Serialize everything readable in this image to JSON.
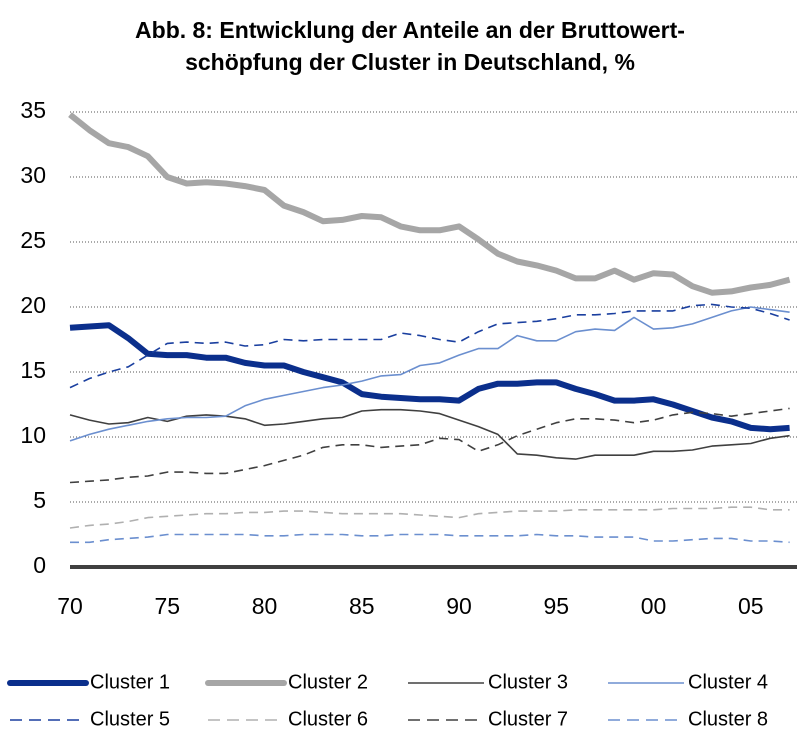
{
  "chart_data": {
    "type": "line",
    "title": [
      "Abb. 8: Entwicklung der Anteile an der Bruttowert-",
      "schöpfung der Cluster in Deutschland, %"
    ],
    "categories": [
      "70",
      null,
      null,
      null,
      null,
      "75",
      null,
      null,
      null,
      null,
      "80",
      null,
      null,
      null,
      null,
      "85",
      null,
      null,
      null,
      null,
      "90",
      null,
      null,
      null,
      null,
      "95",
      null,
      null,
      null,
      null,
      "00",
      null,
      null,
      null,
      null,
      "05",
      null,
      null
    ],
    "ylim": [
      0,
      35
    ],
    "yticks": [
      0,
      5,
      10,
      15,
      20,
      25,
      30,
      35
    ],
    "grid": true,
    "legend": "bottom",
    "series": [
      {
        "name": "Cluster 1",
        "color": "#0b2f8c",
        "line_width": 6,
        "dashed": false,
        "values": [
          18.4,
          18.5,
          18.6,
          17.6,
          16.4,
          16.3,
          16.3,
          16.1,
          16.1,
          15.7,
          15.5,
          15.5,
          15.0,
          14.6,
          14.2,
          13.3,
          13.1,
          13.0,
          12.9,
          12.9,
          12.8,
          13.7,
          14.1,
          14.1,
          14.2,
          14.2,
          13.7,
          13.3,
          12.8,
          12.8,
          12.9,
          12.5,
          12.0,
          11.5,
          11.2,
          10.7,
          10.6,
          10.7
        ]
      },
      {
        "name": "Cluster 2",
        "color": "#a6a6a6",
        "line_width": 6,
        "dashed": false,
        "values": [
          34.8,
          33.6,
          32.6,
          32.3,
          31.6,
          30.0,
          29.5,
          29.6,
          29.5,
          29.3,
          29.0,
          27.8,
          27.3,
          26.6,
          26.7,
          27.0,
          26.9,
          26.2,
          25.9,
          25.9,
          26.2,
          25.2,
          24.1,
          23.5,
          23.2,
          22.8,
          22.2,
          22.2,
          22.8,
          22.1,
          22.6,
          22.5,
          21.6,
          21.1,
          21.2,
          21.5,
          21.7,
          22.1
        ]
      },
      {
        "name": "Cluster 3",
        "color": "#404040",
        "line_width": 1.6,
        "dashed": false,
        "values": [
          11.7,
          11.3,
          11.0,
          11.1,
          11.5,
          11.2,
          11.6,
          11.7,
          11.6,
          11.4,
          10.9,
          11.0,
          11.2,
          11.4,
          11.5,
          12.0,
          12.1,
          12.1,
          12.0,
          11.8,
          11.3,
          10.8,
          10.2,
          8.7,
          8.6,
          8.4,
          8.3,
          8.6,
          8.6,
          8.6,
          8.9,
          8.9,
          9.0,
          9.3,
          9.4,
          9.5,
          9.9,
          10.1
        ]
      },
      {
        "name": "Cluster 4",
        "color": "#6b8fcf",
        "line_width": 1.6,
        "dashed": false,
        "values": [
          9.7,
          10.2,
          10.6,
          10.9,
          11.2,
          11.4,
          11.5,
          11.5,
          11.6,
          12.4,
          12.9,
          13.2,
          13.5,
          13.8,
          14.0,
          14.3,
          14.7,
          14.8,
          15.5,
          15.7,
          16.3,
          16.8,
          16.8,
          17.8,
          17.4,
          17.4,
          18.1,
          18.3,
          18.2,
          19.2,
          18.3,
          18.4,
          18.7,
          19.2,
          19.7,
          20.0,
          19.8,
          19.6
        ]
      },
      {
        "name": "Cluster 5",
        "color": "#1a3f9f",
        "line_width": 1.6,
        "dashed": true,
        "values": [
          13.8,
          14.5,
          15.0,
          15.4,
          16.3,
          17.2,
          17.3,
          17.2,
          17.3,
          17.0,
          17.1,
          17.5,
          17.4,
          17.5,
          17.5,
          17.5,
          17.5,
          18.0,
          17.8,
          17.5,
          17.3,
          18.1,
          18.7,
          18.8,
          18.9,
          19.1,
          19.4,
          19.4,
          19.5,
          19.7,
          19.7,
          19.7,
          20.1,
          20.2,
          20.0,
          19.9,
          19.5,
          19.0
        ]
      },
      {
        "name": "Cluster 6",
        "color": "#b0b0b0",
        "line_width": 1.6,
        "dashed": true,
        "values": [
          3.0,
          3.2,
          3.3,
          3.5,
          3.8,
          3.9,
          4.0,
          4.1,
          4.1,
          4.2,
          4.2,
          4.3,
          4.3,
          4.2,
          4.1,
          4.1,
          4.1,
          4.1,
          4.0,
          3.9,
          3.8,
          4.1,
          4.2,
          4.3,
          4.3,
          4.3,
          4.4,
          4.4,
          4.4,
          4.4,
          4.4,
          4.5,
          4.5,
          4.5,
          4.6,
          4.6,
          4.4,
          4.4
        ]
      },
      {
        "name": "Cluster 7",
        "color": "#404040",
        "line_width": 1.6,
        "dashed": true,
        "values": [
          6.5,
          6.6,
          6.7,
          6.9,
          7.0,
          7.3,
          7.3,
          7.2,
          7.2,
          7.5,
          7.8,
          8.2,
          8.6,
          9.2,
          9.4,
          9.4,
          9.2,
          9.3,
          9.4,
          9.9,
          9.8,
          8.9,
          9.4,
          10.1,
          10.6,
          11.1,
          11.4,
          11.4,
          11.3,
          11.1,
          11.3,
          11.7,
          11.9,
          11.8,
          11.6,
          11.8,
          12.0,
          12.2
        ]
      },
      {
        "name": "Cluster 8",
        "color": "#6b8fcf",
        "line_width": 1.6,
        "dashed": true,
        "values": [
          1.9,
          1.9,
          2.1,
          2.2,
          2.3,
          2.5,
          2.5,
          2.5,
          2.5,
          2.5,
          2.4,
          2.4,
          2.5,
          2.5,
          2.5,
          2.4,
          2.4,
          2.5,
          2.5,
          2.5,
          2.4,
          2.4,
          2.4,
          2.4,
          2.5,
          2.4,
          2.4,
          2.3,
          2.3,
          2.3,
          2.0,
          2.0,
          2.1,
          2.2,
          2.2,
          2.0,
          2.0,
          1.9
        ]
      }
    ]
  }
}
